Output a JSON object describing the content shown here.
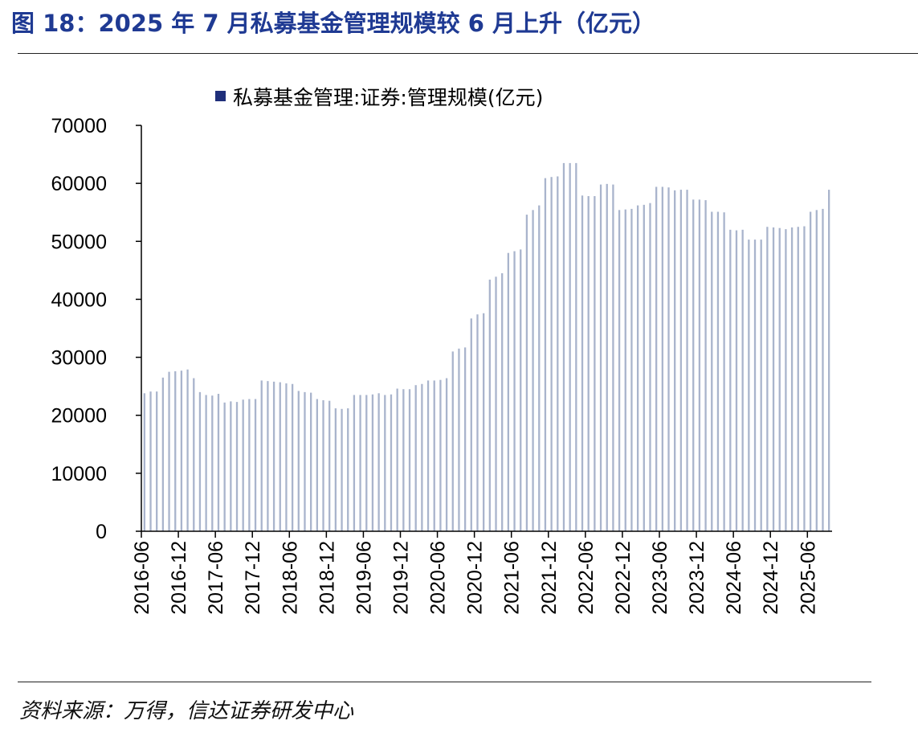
{
  "header": {
    "title": "图 18：2025 年 7 月私募基金管理规模较 6 月上升（亿元）"
  },
  "footer": {
    "source": "资料来源：万得，信达证券研发中心"
  },
  "colors": {
    "title": "#1f3a93",
    "bar": "#a9b4cc",
    "legend_marker": "#1f2f7a",
    "axis": "#000000"
  },
  "chart_data": {
    "type": "bar",
    "legend_position": "top",
    "grid": false,
    "series": [
      {
        "name": "私募基金管理:证券:管理规模(亿元)",
        "values": [
          23800,
          24100,
          24100,
          26500,
          27500,
          27600,
          27700,
          27900,
          26400,
          24000,
          23500,
          23400,
          23700,
          22200,
          22400,
          22300,
          22700,
          22800,
          22800,
          26000,
          25900,
          25800,
          25700,
          25500,
          25400,
          24200,
          24000,
          23900,
          22800,
          22600,
          22500,
          21200,
          21100,
          21200,
          23500,
          23500,
          23500,
          23600,
          23800,
          23500,
          23600,
          24600,
          24500,
          24500,
          25200,
          25400,
          26000,
          26000,
          26100,
          26400,
          31000,
          31500,
          31700,
          36700,
          37400,
          37600,
          43400,
          43900,
          44500,
          48000,
          48300,
          48600,
          54600,
          55400,
          56200,
          60900,
          61100,
          61200,
          63500,
          63500,
          63500,
          57900,
          57800,
          57800,
          59800,
          59900,
          59800,
          55400,
          55500,
          55600,
          56200,
          56300,
          56600,
          59400,
          59400,
          59300,
          58800,
          58900,
          58900,
          57200,
          57200,
          57100,
          55100,
          55100,
          55000,
          52000,
          51900,
          52000,
          50300,
          50300,
          50300,
          52500,
          52400,
          52300,
          52100,
          52400,
          52500,
          52600,
          55100,
          55400,
          55600,
          58900
        ]
      }
    ],
    "x_tick_labels": [
      "2016-06",
      "2016-12",
      "2017-06",
      "2017-12",
      "2018-06",
      "2018-12",
      "2019-06",
      "2019-12",
      "2020-06",
      "2020-12",
      "2021-06",
      "2021-12",
      "2022-06",
      "2022-12",
      "2023-06",
      "2023-12",
      "2024-06",
      "2024-12",
      "2025-06"
    ],
    "y_tick_labels": [
      "0",
      "10000",
      "20000",
      "30000",
      "40000",
      "50000",
      "60000",
      "70000"
    ],
    "ylim": [
      0,
      70000
    ]
  }
}
